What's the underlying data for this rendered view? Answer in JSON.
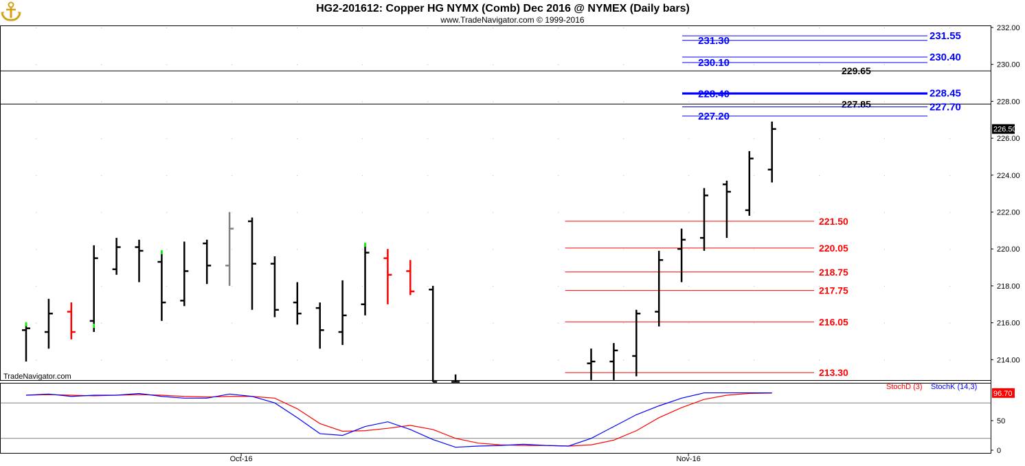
{
  "header": {
    "title": "HG2-201612:  Copper HG NYMX (Comb) Dec 2016 @ NYMEX  (Daily bars)",
    "subtitle": "www.TradeNavigator.com © 1999-2016",
    "watermark": "TradeNavigator.com"
  },
  "logo": {
    "icon": "anchor-icon",
    "color": "#d4a017"
  },
  "colors": {
    "up_bar": "#000000",
    "signal_green": "#00ff00",
    "signal_red": "#ff0000",
    "gray_bar": "#808080",
    "blue_level": "#0000ff",
    "red_level": "#ff0000",
    "black_level": "#000000",
    "stoch_d": "#ff0000",
    "stoch_k": "#0000ff",
    "last_price_badge": "#000000",
    "stoch_badge": "#ff0000"
  },
  "chart_data": [
    {
      "type": "ohlc",
      "panel": "price",
      "title": "HG2-201612:  Copper HG NYMX (Comb) Dec 2016 @ NYMEX  (Daily bars)",
      "ylim": [
        212.8,
        232.0
      ],
      "y_ticks": [
        "214.00",
        "216.00",
        "218.00",
        "220.00",
        "222.00",
        "224.00",
        "226.00",
        "228.00",
        "230.00",
        "232.00"
      ],
      "x_tick_labels": [
        {
          "label": "Oct-16",
          "bar_index": 9
        },
        {
          "label": "Nov-16",
          "bar_index": 29
        }
      ],
      "last_price": "226.50",
      "bars": [
        {
          "i": 0,
          "o": 215.6,
          "h": 216.0,
          "l": 213.9,
          "c": 215.7,
          "color": "black",
          "marker": "green"
        },
        {
          "i": 1,
          "o": 215.5,
          "h": 217.3,
          "l": 214.6,
          "c": 216.5,
          "color": "black"
        },
        {
          "i": 2,
          "o": 216.6,
          "h": 217.1,
          "l": 215.1,
          "c": 215.5,
          "color": "red"
        },
        {
          "i": 3,
          "o": 216.1,
          "h": 220.2,
          "l": 215.5,
          "c": 219.5,
          "color": "black",
          "marker": "green"
        },
        {
          "i": 4,
          "o": 218.9,
          "h": 220.6,
          "l": 218.6,
          "c": 220.1,
          "color": "black"
        },
        {
          "i": 5,
          "o": 220.1,
          "h": 220.5,
          "l": 218.2,
          "c": 219.9,
          "color": "black"
        },
        {
          "i": 6,
          "o": 219.3,
          "h": 219.9,
          "l": 216.1,
          "c": 217.1,
          "color": "black",
          "marker": "green"
        },
        {
          "i": 7,
          "o": 217.2,
          "h": 220.4,
          "l": 216.9,
          "c": 218.8,
          "color": "black"
        },
        {
          "i": 8,
          "o": 220.3,
          "h": 220.5,
          "l": 218.1,
          "c": 219.1,
          "color": "black"
        },
        {
          "i": 9,
          "o": 219.1,
          "h": 222.0,
          "l": 218.0,
          "c": 221.1,
          "color": "gray"
        },
        {
          "i": 10,
          "o": 221.5,
          "h": 221.7,
          "l": 216.7,
          "c": 219.2,
          "color": "black"
        },
        {
          "i": 11,
          "o": 219.2,
          "h": 219.6,
          "l": 216.3,
          "c": 216.7,
          "color": "black"
        },
        {
          "i": 12,
          "o": 217.1,
          "h": 218.2,
          "l": 215.9,
          "c": 216.5,
          "color": "black"
        },
        {
          "i": 13,
          "o": 216.8,
          "h": 217.1,
          "l": 214.6,
          "c": 215.6,
          "color": "black"
        },
        {
          "i": 14,
          "o": 215.5,
          "h": 218.3,
          "l": 214.8,
          "c": 216.4,
          "color": "black"
        },
        {
          "i": 15,
          "o": 217.0,
          "h": 220.3,
          "l": 216.4,
          "c": 219.8,
          "color": "black",
          "marker": "green"
        },
        {
          "i": 16,
          "o": 219.5,
          "h": 220.0,
          "l": 217.0,
          "c": 218.6,
          "color": "red"
        },
        {
          "i": 17,
          "o": 218.8,
          "h": 219.4,
          "l": 217.5,
          "c": 217.7,
          "color": "red"
        },
        {
          "i": 18,
          "o": 217.8,
          "h": 218.0,
          "l": 212.8,
          "c": 212.8,
          "color": "black"
        },
        {
          "i": 19,
          "o": 212.8,
          "h": 213.2,
          "l": 212.8,
          "c": 212.8,
          "color": "black"
        },
        {
          "i": 25,
          "o": 213.8,
          "h": 214.6,
          "l": 212.9,
          "c": 213.9,
          "color": "black"
        },
        {
          "i": 26,
          "o": 213.9,
          "h": 214.9,
          "l": 212.9,
          "c": 214.5,
          "color": "black"
        },
        {
          "i": 27,
          "o": 214.2,
          "h": 216.7,
          "l": 213.1,
          "c": 216.5,
          "color": "black"
        },
        {
          "i": 28,
          "o": 216.6,
          "h": 219.9,
          "l": 215.8,
          "c": 219.4,
          "color": "black"
        },
        {
          "i": 29,
          "o": 220.0,
          "h": 221.1,
          "l": 218.2,
          "c": 220.5,
          "color": "black"
        },
        {
          "i": 30,
          "o": 220.6,
          "h": 223.3,
          "l": 219.9,
          "c": 222.9,
          "color": "black"
        },
        {
          "i": 31,
          "o": 223.5,
          "h": 223.7,
          "l": 220.6,
          "c": 223.1,
          "color": "black"
        },
        {
          "i": 32,
          "o": 222.1,
          "h": 225.3,
          "l": 221.8,
          "c": 224.9,
          "color": "black"
        },
        {
          "i": 33,
          "o": 224.3,
          "h": 226.9,
          "l": 223.6,
          "c": 226.5,
          "color": "black"
        }
      ],
      "levels": [
        {
          "value": 231.55,
          "label": "231.55",
          "color": "blue",
          "start_index": 30,
          "side": "right"
        },
        {
          "value": 231.3,
          "label": "231.30",
          "color": "blue",
          "start_index": 30,
          "side": "left"
        },
        {
          "value": 230.4,
          "label": "230.40",
          "color": "blue",
          "start_index": 30,
          "side": "right"
        },
        {
          "value": 230.1,
          "label": "230.10",
          "color": "blue",
          "start_index": 30,
          "side": "left"
        },
        {
          "value": 229.65,
          "label": "229.65",
          "color": "black",
          "start_index": -1,
          "side": "mid"
        },
        {
          "value": 228.45,
          "label": "228.45",
          "color": "blue",
          "start_index": 30,
          "side": "right"
        },
        {
          "value": 228.4,
          "label": "228.40",
          "color": "blue",
          "start_index": 30,
          "side": "left"
        },
        {
          "value": 227.85,
          "label": "227.85",
          "color": "black",
          "start_index": -1,
          "side": "mid"
        },
        {
          "value": 227.7,
          "label": "227.70",
          "color": "blue",
          "start_index": 30,
          "side": "right"
        },
        {
          "value": 227.2,
          "label": "227.20",
          "color": "blue",
          "start_index": 30,
          "side": "left"
        },
        {
          "value": 221.5,
          "label": "221.50",
          "color": "red",
          "start_index": 24,
          "side": "red"
        },
        {
          "value": 220.05,
          "label": "220.05",
          "color": "red",
          "start_index": 24,
          "side": "red"
        },
        {
          "value": 218.75,
          "label": "218.75",
          "color": "red",
          "start_index": 24,
          "side": "red"
        },
        {
          "value": 217.75,
          "label": "217.75",
          "color": "red",
          "start_index": 24,
          "side": "red"
        },
        {
          "value": 216.05,
          "label": "216.05",
          "color": "red",
          "start_index": 24,
          "side": "red"
        },
        {
          "value": 213.3,
          "label": "213.30",
          "color": "red",
          "start_index": 24,
          "side": "red"
        }
      ]
    },
    {
      "type": "line",
      "panel": "stochastic",
      "ylim": [
        0,
        100
      ],
      "y_ticks": [
        "0",
        "50"
      ],
      "reference_lines": [
        80,
        20
      ],
      "last_value": "96.70",
      "series": [
        {
          "name": "StochD (3)",
          "color": "red",
          "points": [
            [
              0,
              93
            ],
            [
              1,
              94
            ],
            [
              2,
              93
            ],
            [
              3,
              92
            ],
            [
              4,
              93
            ],
            [
              5,
              94
            ],
            [
              6,
              93
            ],
            [
              7,
              91
            ],
            [
              8,
              90
            ],
            [
              9,
              91
            ],
            [
              10,
              91
            ],
            [
              11,
              88
            ],
            [
              12,
              70
            ],
            [
              13,
              45
            ],
            [
              14,
              32
            ],
            [
              15,
              33
            ],
            [
              16,
              37
            ],
            [
              17,
              42
            ],
            [
              18,
              35
            ],
            [
              19,
              20
            ],
            [
              20,
              12
            ],
            [
              21,
              9
            ],
            [
              22,
              8
            ],
            [
              23,
              8
            ],
            [
              24,
              7
            ],
            [
              25,
              9
            ],
            [
              26,
              17
            ],
            [
              27,
              33
            ],
            [
              28,
              55
            ],
            [
              29,
              72
            ],
            [
              30,
              86
            ],
            [
              31,
              93
            ],
            [
              32,
              96
            ],
            [
              33,
              96.7
            ]
          ]
        },
        {
          "name": "StochK (14,3)",
          "color": "blue",
          "points": [
            [
              0,
              93
            ],
            [
              1,
              95
            ],
            [
              2,
              91
            ],
            [
              3,
              93
            ],
            [
              4,
              93
            ],
            [
              5,
              96
            ],
            [
              6,
              91
            ],
            [
              7,
              88
            ],
            [
              8,
              88
            ],
            [
              9,
              95
            ],
            [
              10,
              91
            ],
            [
              11,
              80
            ],
            [
              12,
              55
            ],
            [
              13,
              28
            ],
            [
              14,
              25
            ],
            [
              15,
              40
            ],
            [
              16,
              48
            ],
            [
              17,
              35
            ],
            [
              18,
              18
            ],
            [
              19,
              5
            ],
            [
              20,
              7
            ],
            [
              21,
              8
            ],
            [
              22,
              10
            ],
            [
              23,
              8
            ],
            [
              24,
              7
            ],
            [
              25,
              20
            ],
            [
              26,
              40
            ],
            [
              27,
              60
            ],
            [
              28,
              75
            ],
            [
              29,
              88
            ],
            [
              30,
              97
            ],
            [
              31,
              97
            ],
            [
              32,
              97
            ],
            [
              33,
              97
            ]
          ]
        }
      ]
    }
  ]
}
